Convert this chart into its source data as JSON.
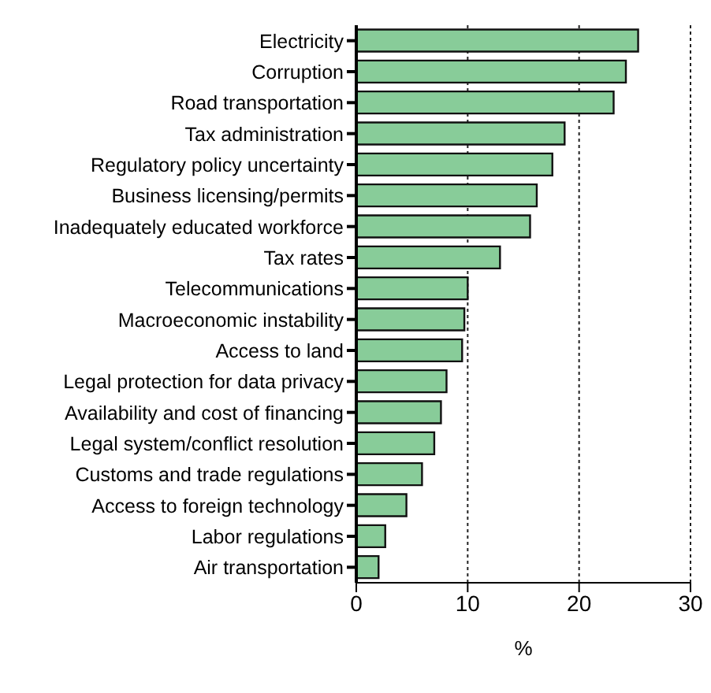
{
  "chart_data": {
    "type": "bar",
    "orientation": "horizontal",
    "xlabel": "%",
    "categories": [
      "Electricity",
      "Corruption",
      "Road transportation",
      "Tax administration",
      "Regulatory policy uncertainty",
      "Business licensing/permits",
      "Inadequately educated workforce",
      "Tax rates",
      "Telecommunications",
      "Macroeconomic instability",
      "Access to land",
      "Legal protection for data privacy",
      "Availability and cost of financing",
      "Legal system/conflict resolution",
      "Customs and trade regulations",
      "Access to foreign technology",
      "Labor regulations",
      "Air transportation"
    ],
    "values": [
      25.3,
      24.2,
      23.1,
      18.7,
      17.6,
      16.2,
      15.6,
      12.9,
      10.0,
      9.7,
      9.5,
      8.1,
      7.6,
      7.0,
      5.9,
      4.5,
      2.6,
      2.0
    ],
    "color": "#88cc99",
    "xlim": [
      0,
      30
    ],
    "xticks": [
      0,
      10,
      20,
      30
    ],
    "grid": "x"
  }
}
